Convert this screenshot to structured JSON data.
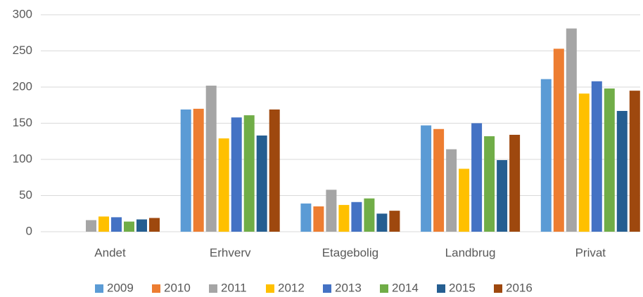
{
  "chart_data": {
    "type": "bar",
    "categories": [
      "Andet",
      "Erhverv",
      "Etagebolig",
      "Landbrug",
      "Privat"
    ],
    "series": [
      {
        "name": "2009",
        "color": "#5b9bd5",
        "values": [
          null,
          169,
          39,
          147,
          211
        ]
      },
      {
        "name": "2010",
        "color": "#ed7d31",
        "values": [
          null,
          170,
          35,
          142,
          253
        ]
      },
      {
        "name": "2011",
        "color": "#a5a5a5",
        "values": [
          16,
          202,
          58,
          114,
          281
        ]
      },
      {
        "name": "2012",
        "color": "#ffc000",
        "values": [
          21,
          129,
          37,
          87,
          191
        ]
      },
      {
        "name": "2013",
        "color": "#4472c4",
        "values": [
          20,
          158,
          41,
          150,
          208
        ]
      },
      {
        "name": "2014",
        "color": "#70ad47",
        "values": [
          14,
          161,
          46,
          132,
          198
        ]
      },
      {
        "name": "2015",
        "color": "#255e91",
        "values": [
          17,
          133,
          25,
          99,
          167
        ]
      },
      {
        "name": "2016",
        "color": "#9e480e",
        "values": [
          19,
          169,
          29,
          134,
          195
        ]
      }
    ],
    "ylim": [
      0,
      300
    ],
    "yticks": [
      0,
      50,
      100,
      150,
      200,
      250,
      300
    ],
    "grid": true,
    "legend": "bottom"
  }
}
